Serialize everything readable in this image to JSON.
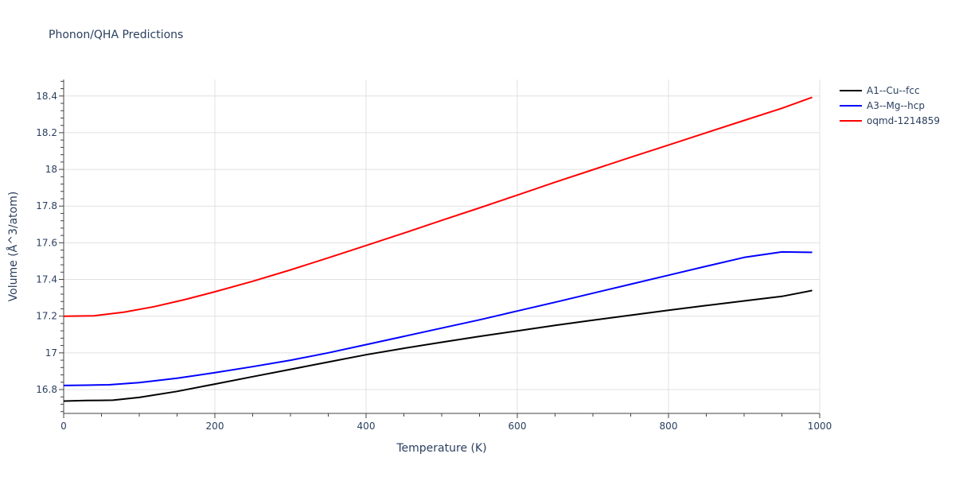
{
  "chart_data": {
    "type": "line",
    "title": "Phonon/QHA Predictions",
    "xlabel": "Temperature (K)",
    "ylabel": "Volume (Å^3/atom)",
    "xlim": [
      0,
      1000
    ],
    "ylim": [
      16.67,
      18.49
    ],
    "xticks": [
      0,
      200,
      400,
      600,
      800,
      1000
    ],
    "yticks": [
      16.8,
      17,
      17.2,
      17.4,
      17.6,
      17.8,
      18,
      18.2,
      18.4
    ],
    "ytick_labels": [
      "16.8",
      "17",
      "17.2",
      "17.4",
      "17.6",
      "17.8",
      "18",
      "18.2",
      "18.4"
    ],
    "grid": true,
    "legend_position": "top-right",
    "series": [
      {
        "name": "A1--Cu--fcc",
        "color": "#000000",
        "x": [
          0,
          30,
          65,
          100,
          150,
          200,
          250,
          300,
          350,
          400,
          450,
          500,
          550,
          600,
          650,
          700,
          750,
          800,
          850,
          900,
          950,
          990
        ],
        "y": [
          16.737,
          16.74,
          16.742,
          16.757,
          16.79,
          16.83,
          16.87,
          16.91,
          16.95,
          16.99,
          17.025,
          17.058,
          17.09,
          17.12,
          17.15,
          17.178,
          17.205,
          17.232,
          17.258,
          17.283,
          17.308,
          17.34
        ]
      },
      {
        "name": "A3--Mg--hcp",
        "color": "#0000ff",
        "x": [
          0,
          30,
          60,
          100,
          150,
          200,
          250,
          300,
          350,
          400,
          450,
          500,
          550,
          600,
          650,
          700,
          750,
          800,
          850,
          900,
          950,
          990
        ],
        "y": [
          16.822,
          16.824,
          16.826,
          16.838,
          16.862,
          16.892,
          16.925,
          16.96,
          17.0,
          17.045,
          17.09,
          17.135,
          17.18,
          17.228,
          17.276,
          17.325,
          17.374,
          17.423,
          17.472,
          17.52,
          17.55,
          17.548
        ]
      },
      {
        "name": "oqmd-1214859",
        "color": "#ff0000",
        "x": [
          0,
          40,
          80,
          120,
          160,
          200,
          250,
          300,
          350,
          400,
          450,
          500,
          550,
          600,
          650,
          700,
          750,
          800,
          850,
          900,
          950,
          990
        ],
        "y": [
          17.2,
          17.202,
          17.222,
          17.252,
          17.29,
          17.333,
          17.39,
          17.452,
          17.518,
          17.585,
          17.653,
          17.722,
          17.79,
          17.86,
          17.93,
          17.998,
          18.066,
          18.133,
          18.2,
          18.267,
          18.333,
          18.393
        ]
      }
    ]
  }
}
